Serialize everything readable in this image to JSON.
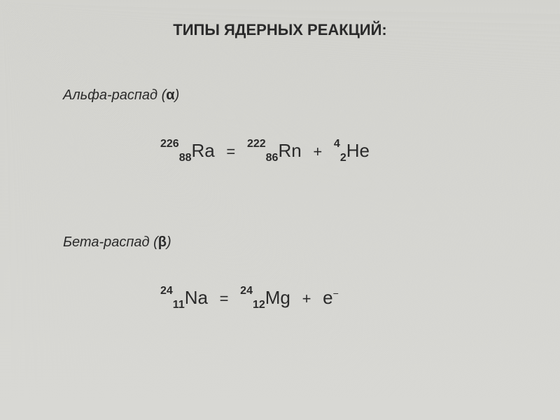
{
  "title": "ТИПЫ ЯДЕРНЫХ РЕАКЦИЙ:",
  "alpha": {
    "label_prefix": "Альфа-распад (",
    "greek": "α",
    "label_suffix": ")",
    "lhs": {
      "mass": "226",
      "atomic": "88",
      "symbol": "Ra"
    },
    "rhs1": {
      "mass": "222",
      "atomic": "86",
      "symbol": "Rn"
    },
    "rhs2": {
      "mass": "4",
      "atomic": "2",
      "symbol": "He"
    }
  },
  "beta": {
    "label_prefix": "Бета-распад (",
    "greek": "β",
    "label_suffix": ")",
    "lhs": {
      "mass": "24",
      "atomic": "11",
      "symbol": "Na"
    },
    "rhs1": {
      "mass": "24",
      "atomic": "12",
      "symbol": "Mg"
    },
    "electron": {
      "symbol": "e",
      "charge": "−"
    }
  },
  "eq_sign": "=",
  "plus_sign": "+",
  "colors": {
    "background": "#d8d8d4",
    "text": "#2a2a2a"
  }
}
